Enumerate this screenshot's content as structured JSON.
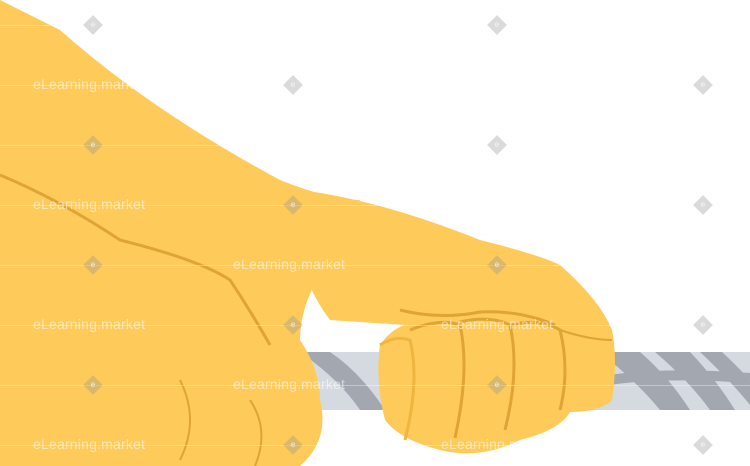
{
  "watermark": {
    "text": "eLearning.market",
    "badge_letter": "e"
  },
  "colors": {
    "background": "#ffffff",
    "skin": "#FECB5A",
    "skin_shadow": "#F0B440",
    "crease": "#E0A335",
    "rope_light": "#D5D9E0",
    "rope_dark": "#A3A8B0",
    "watermark_gray": "#9A9A9A"
  }
}
